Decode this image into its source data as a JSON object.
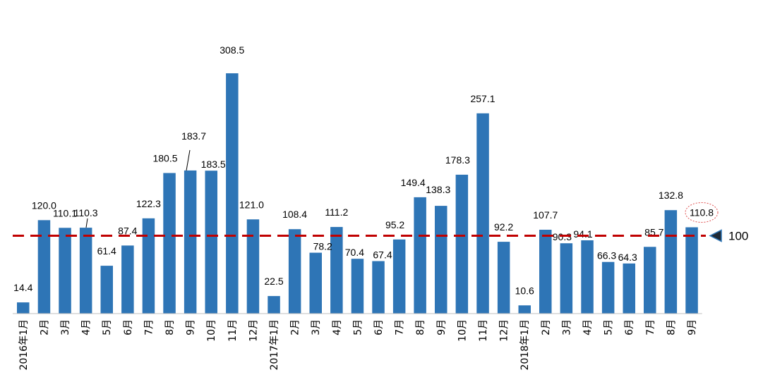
{
  "chart_data": {
    "type": "bar",
    "categories": [
      "2016年1月",
      "2月",
      "3月",
      "4月",
      "5月",
      "6月",
      "7月",
      "8月",
      "9月",
      "10月",
      "11月",
      "12月",
      "2017年1月",
      "2月",
      "3月",
      "4月",
      "5月",
      "6月",
      "7月",
      "8月",
      "9月",
      "10月",
      "11月",
      "12月",
      "2018年1月",
      "2月",
      "3月",
      "4月",
      "5月",
      "6月",
      "7月",
      "8月",
      "9月"
    ],
    "values": [
      14.4,
      120.0,
      110.1,
      110.3,
      61.4,
      87.4,
      122.3,
      180.5,
      183.7,
      183.5,
      308.5,
      121.0,
      22.5,
      108.4,
      78.2,
      111.2,
      70.4,
      67.4,
      95.2,
      149.4,
      138.3,
      178.3,
      257.1,
      92.2,
      10.6,
      107.7,
      90.3,
      94.1,
      66.3,
      64.3,
      85.7,
      132.8,
      110.8
    ],
    "value_labels": [
      "14.4",
      "120.0",
      "110.1",
      "110.3",
      "61.4",
      "87.4",
      "122.3",
      "180.5",
      "183.7",
      "183.5",
      "308.5",
      "121.0",
      "22.5",
      "108.4",
      "78.2",
      "111.2",
      "70.4",
      "67.4",
      "95.2",
      "149.4",
      "138.3",
      "178.3",
      "257.1",
      "92.2",
      "10.6",
      "107.7",
      "90.3",
      "94.1",
      "66.3",
      "64.3",
      "85.7",
      "132.8",
      "110.8"
    ],
    "reference_line": {
      "value": 100,
      "label": "100",
      "color": "#c00000"
    },
    "highlighted_index": 32,
    "bar_color": "#2e75b6",
    "ylim": [
      0,
      330
    ],
    "grid": false,
    "title": "",
    "xlabel": "",
    "ylabel": ""
  }
}
